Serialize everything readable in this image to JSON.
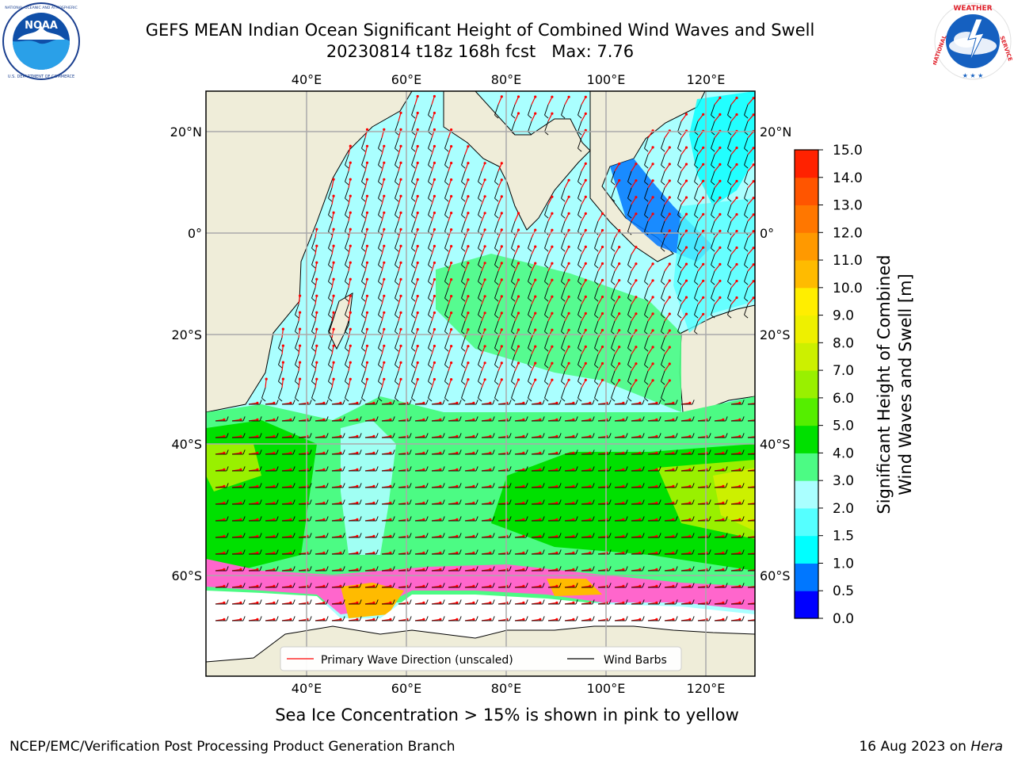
{
  "title": {
    "line1": "GEFS MEAN Indian Ocean Significant Height of Combined Wind Waves and Swell",
    "line2": "20230814 t18z 168h fcst   Max: 7.76"
  },
  "logos": {
    "left": {
      "icon": "noaa-logo-icon",
      "text": "NOAA",
      "ring_text": "NATIONAL OCEANIC AND ATMOSPHERIC ADMINISTRATION · U.S. DEPARTMENT OF COMMERCE"
    },
    "right": {
      "icon": "nws-logo-icon",
      "ring_text": "NATIONAL WEATHER SERVICE"
    }
  },
  "map": {
    "lon_labels": [
      "40°E",
      "60°E",
      "80°E",
      "100°E",
      "120°E"
    ],
    "lat_labels": [
      "20°N",
      "0°",
      "20°S",
      "40°S",
      "60°S"
    ],
    "legend": {
      "wave_direction": "Primary Wave Direction (unscaled)",
      "wind_barbs": "Wind Barbs"
    },
    "colors": {
      "land": "#efedd9",
      "sea_ice": "#ff66cc",
      "wave_arrow": "#ff0000",
      "barb": "#000000",
      "antarctica": "#ffffff"
    }
  },
  "colorbar": {
    "label_line1": "Significant Height of Combined",
    "label_line2": "Wind Waves and Swell [m]",
    "ticks": [
      "0.0",
      "0.5",
      "1.0",
      "1.5",
      "2.0",
      "3.0",
      "4.0",
      "5.0",
      "6.0",
      "7.0",
      "8.0",
      "9.0",
      "10.0",
      "11.0",
      "12.0",
      "13.0",
      "14.0",
      "15.0"
    ],
    "colors": [
      "#0000ff",
      "#0077ff",
      "#00ffff",
      "#55ffff",
      "#aaffff",
      "#4cfb84",
      "#00e000",
      "#55ee00",
      "#99f000",
      "#ccf000",
      "#eef000",
      "#ffee00",
      "#ffbb00",
      "#ff9900",
      "#ff7700",
      "#ff5500",
      "#ff2200"
    ]
  },
  "subtitle": "Sea Ice Concentration > 15% is shown in pink to yellow",
  "footer": {
    "left": "NCEP/EMC/Verification Post Processing Product Generation Branch",
    "right_date": "16 Aug 2023 on ",
    "right_host": "Hera"
  }
}
